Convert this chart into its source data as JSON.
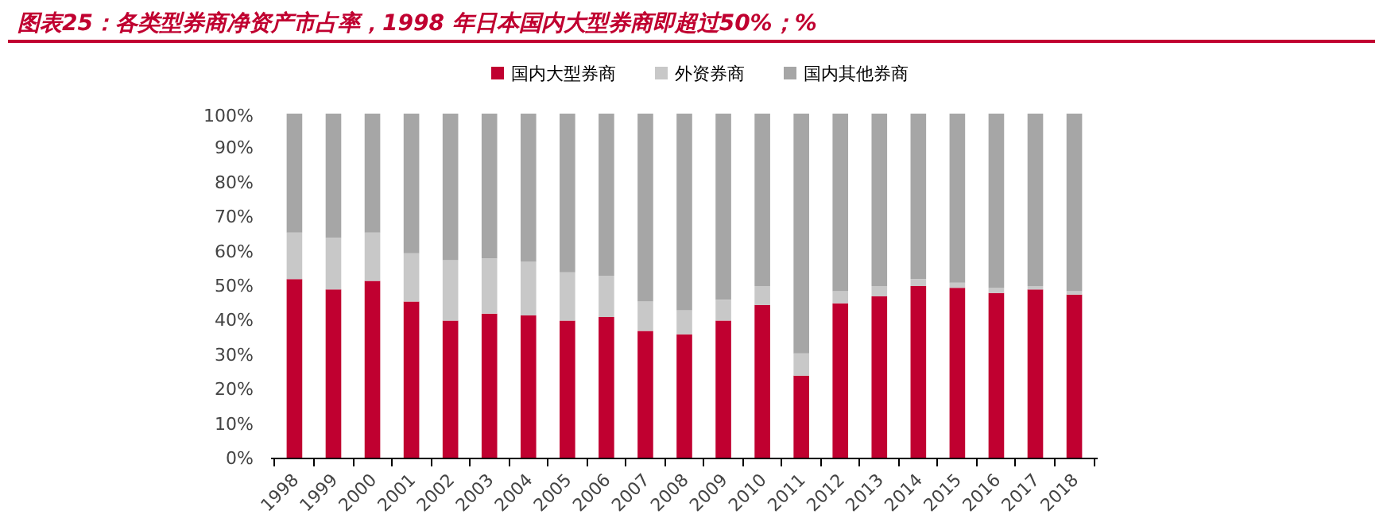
{
  "chart_data": {
    "type": "bar",
    "title": "图表25：各类型券商净资产市占率，1998 年日本国内大型券商即超过50%；%",
    "stacked": true,
    "categories": [
      "1998",
      "1999",
      "2000",
      "2001",
      "2002",
      "2003",
      "2004",
      "2005",
      "2006",
      "2007",
      "2008",
      "2009",
      "2010",
      "2011",
      "2012",
      "2013",
      "2014",
      "2015",
      "2016",
      "2017",
      "2018"
    ],
    "series": [
      {
        "name": "国内大型券商",
        "color": "#c00030",
        "values": [
          52,
          49,
          51.5,
          45.5,
          40,
          42,
          41.5,
          40,
          41,
          37,
          36,
          40,
          44.5,
          24,
          45,
          47,
          50,
          49.5,
          48,
          49,
          47.5
        ]
      },
      {
        "name": "外资券商",
        "color": "#c8c8c8",
        "values": [
          13.5,
          15,
          14,
          14,
          17.5,
          16,
          15.5,
          14,
          12,
          8.5,
          7,
          6,
          5.5,
          6.5,
          3.5,
          3,
          2,
          1.5,
          1.5,
          1,
          1
        ]
      },
      {
        "name": "国内其他券商",
        "color": "#a6a6a6",
        "values": [
          34.5,
          36,
          34.5,
          40.5,
          42.5,
          42,
          43,
          46,
          47,
          54.5,
          57,
          54,
          50,
          69.5,
          51.5,
          50,
          48,
          49,
          50.5,
          50,
          51.5
        ]
      }
    ],
    "ylim": [
      0,
      100
    ],
    "yticks": [
      {
        "value": 0,
        "label": "0%"
      },
      {
        "value": 10,
        "label": "10%"
      },
      {
        "value": 20,
        "label": "20%"
      },
      {
        "value": 30,
        "label": "30%"
      },
      {
        "value": 40,
        "label": "40%"
      },
      {
        "value": 50,
        "label": "50%"
      },
      {
        "value": 60,
        "label": "60%"
      },
      {
        "value": 70,
        "label": "70%"
      },
      {
        "value": 80,
        "label": "80%"
      },
      {
        "value": 90,
        "label": "90%"
      },
      {
        "value": 100,
        "label": "100%"
      }
    ],
    "grid": false,
    "legend": "top"
  }
}
